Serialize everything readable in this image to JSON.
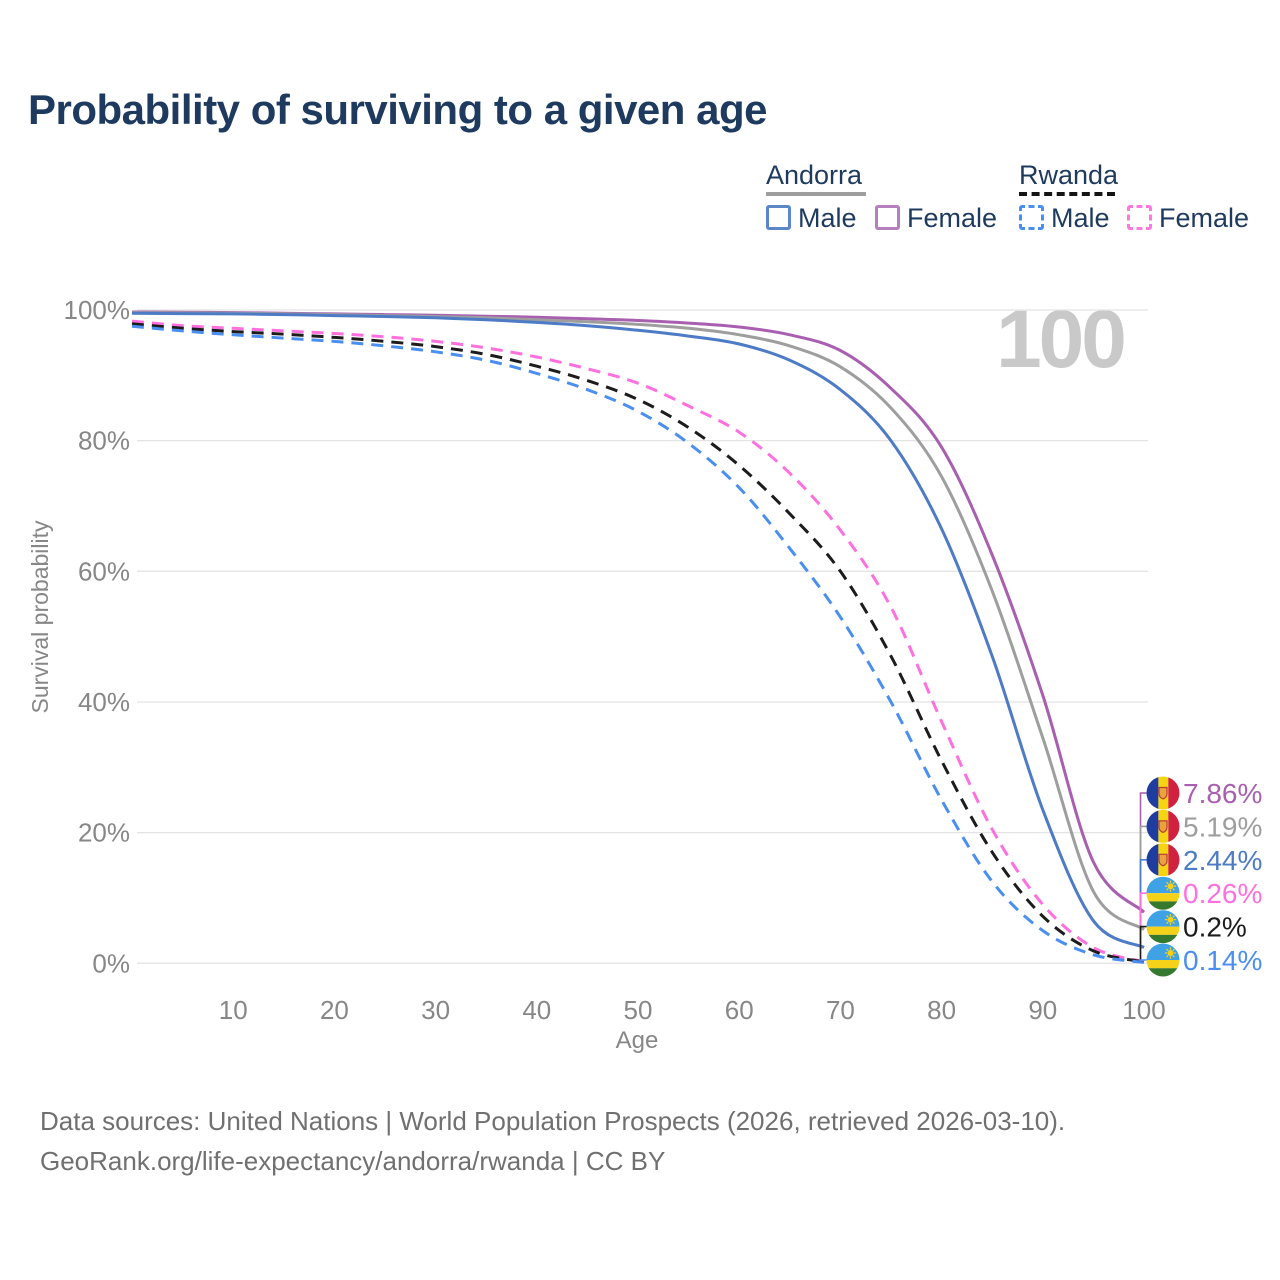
{
  "title": "Probability of surviving to a given age",
  "watermark": "100",
  "footer": {
    "line1": "Data sources: United Nations | World Population Prospects (2026, retrieved 2026-03-10).",
    "line2": "GeoRank.org/life-expectancy/andorra/rwanda | CC BY"
  },
  "legend": {
    "groups": [
      {
        "name": "Andorra",
        "line_style": "solid",
        "underline_color": "#9e9e9e",
        "items": [
          {
            "label": "Male",
            "color": "#5b86c9",
            "dashed": false
          },
          {
            "label": "Female",
            "color": "#b67fbe",
            "dashed": false
          }
        ]
      },
      {
        "name": "Rwanda",
        "line_style": "dashed",
        "underline_color": "#141414",
        "items": [
          {
            "label": "Male",
            "color": "#4a8ff0",
            "dashed": true
          },
          {
            "label": "Female",
            "color": "#ff78e0",
            "dashed": true
          }
        ]
      }
    ]
  },
  "chart_data": {
    "type": "line",
    "title": "Probability of surviving to a given age",
    "xlabel": "Age",
    "ylabel": "Survival probability",
    "grid": "horizontal",
    "xlim": [
      0,
      100
    ],
    "ylim": [
      0,
      100
    ],
    "x_ticks": [
      10,
      20,
      30,
      40,
      50,
      60,
      70,
      80,
      90,
      100
    ],
    "x_tick_labels": [
      "10",
      "20",
      "30",
      "40",
      "50",
      "60",
      "70",
      "80",
      "90",
      "100"
    ],
    "y_ticks": [
      0,
      20,
      40,
      60,
      80,
      100
    ],
    "y_tick_labels": [
      "0%",
      "20%",
      "40%",
      "60%",
      "80%",
      "100%"
    ],
    "x": [
      0,
      5,
      10,
      15,
      20,
      25,
      30,
      35,
      40,
      45,
      50,
      55,
      60,
      65,
      70,
      75,
      80,
      85,
      90,
      95,
      100
    ],
    "series": [
      {
        "name": "Andorra Female",
        "country": "Andorra",
        "sex": "Female",
        "color": "#a95fb0",
        "dash": false,
        "flag": "andorra",
        "end_label": "7.86%",
        "values": [
          99.7,
          99.65,
          99.6,
          99.5,
          99.4,
          99.3,
          99.2,
          99.05,
          98.9,
          98.65,
          98.4,
          98.0,
          97.4,
          96.2,
          93.8,
          88.0,
          79.0,
          62.5,
          41.0,
          15.5,
          7.86
        ]
      },
      {
        "name": "Andorra Both sexes",
        "country": "Andorra",
        "sex": "Both",
        "color": "#9e9e9e",
        "dash": false,
        "flag": "andorra",
        "end_label": "5.19%",
        "values": [
          99.6,
          99.55,
          99.5,
          99.4,
          99.3,
          99.15,
          99.0,
          98.8,
          98.5,
          98.2,
          97.8,
          97.2,
          96.2,
          94.5,
          91.3,
          85.0,
          74.5,
          57.0,
          34.5,
          11.0,
          5.19
        ]
      },
      {
        "name": "Andorra Male",
        "country": "Andorra",
        "sex": "Male",
        "color": "#4d7bc6",
        "dash": false,
        "flag": "andorra",
        "end_label": "2.44%",
        "values": [
          99.5,
          99.45,
          99.4,
          99.3,
          99.15,
          99.0,
          98.8,
          98.5,
          98.1,
          97.6,
          96.9,
          96.0,
          94.8,
          92.3,
          87.8,
          80.0,
          66.5,
          47.0,
          23.5,
          6.5,
          2.44
        ]
      },
      {
        "name": "Rwanda Female",
        "country": "Rwanda",
        "sex": "Female",
        "color": "#ff70df",
        "dash": true,
        "flag": "rwanda",
        "end_label": "0.26%",
        "values": [
          98.3,
          97.6,
          97.2,
          96.8,
          96.4,
          95.9,
          95.2,
          94.2,
          92.8,
          91.0,
          88.8,
          85.3,
          81.3,
          75.0,
          66.3,
          54.5,
          37.0,
          20.5,
          9.0,
          2.4,
          0.26
        ]
      },
      {
        "name": "Rwanda Both sexes",
        "country": "Rwanda",
        "sex": "Both",
        "color": "#1c1c1c",
        "dash": true,
        "flag": "rwanda",
        "end_label": "0.2%",
        "values": [
          97.9,
          97.2,
          96.7,
          96.3,
          95.8,
          95.2,
          94.4,
          93.2,
          91.4,
          89.2,
          86.3,
          82.0,
          76.2,
          68.8,
          60.0,
          47.0,
          31.0,
          17.0,
          7.2,
          1.9,
          0.2
        ]
      },
      {
        "name": "Rwanda Male",
        "country": "Rwanda",
        "sex": "Male",
        "color": "#4a8ff0",
        "dash": true,
        "flag": "rwanda",
        "end_label": "0.14%",
        "values": [
          97.5,
          96.8,
          96.2,
          95.7,
          95.2,
          94.5,
          93.6,
          92.3,
          90.3,
          87.8,
          84.5,
          79.6,
          72.8,
          63.5,
          53.0,
          40.0,
          25.0,
          12.5,
          5.0,
          1.3,
          0.14
        ]
      }
    ]
  }
}
